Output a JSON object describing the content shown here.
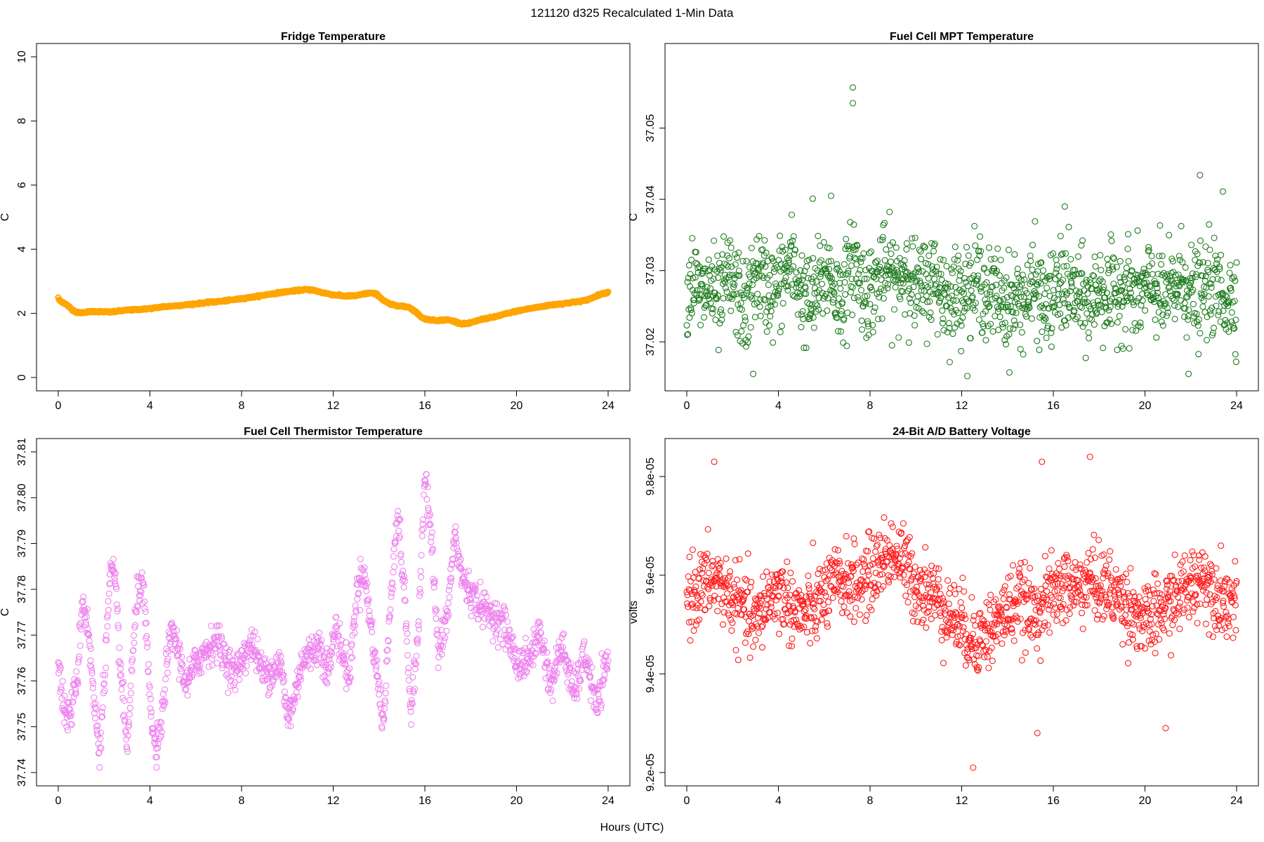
{
  "figure": {
    "title": "121120   d325   Recalculated 1-Min Data",
    "xlabel": "Hours (UTC)"
  },
  "chart_data": [
    {
      "type": "scatter",
      "title": "Fridge Temperature",
      "xlabel": "",
      "ylabel": "C",
      "xlim": [
        0,
        24
      ],
      "ylim": [
        0,
        10
      ],
      "xticks": [
        "0",
        "4",
        "8",
        "12",
        "16",
        "20",
        "24"
      ],
      "yticks": [
        "0",
        "2",
        "4",
        "6",
        "8",
        "10"
      ],
      "color": "#FFA500",
      "marker": "open-circle",
      "marker_note": "point density ~1 per minute",
      "series": [
        {
          "x": [
            0.0,
            0.05,
            0.2,
            0.4,
            0.6,
            0.8,
            1.0,
            1.3,
            1.6,
            2.0,
            2.3,
            2.6,
            3.0,
            3.5,
            4.0,
            4.5,
            5.0,
            5.5,
            6.0,
            6.5,
            7.0,
            7.5,
            8.0,
            8.5,
            9.0,
            9.5,
            10.0,
            10.5,
            10.8,
            11.1,
            11.5,
            12.0,
            12.5,
            13.0,
            13.3,
            13.6,
            13.9,
            14.2,
            14.5,
            15.0,
            15.3,
            15.6,
            15.9,
            16.2,
            16.5,
            17.0,
            17.3,
            17.6,
            17.9,
            18.2,
            18.5,
            19.0,
            19.5,
            20.0,
            20.5,
            21.0,
            21.5,
            22.0,
            22.5,
            23.0,
            23.3,
            23.6,
            24.0
          ],
          "y": [
            2.5,
            2.4,
            2.35,
            2.25,
            2.12,
            2.03,
            2.02,
            2.05,
            2.06,
            2.05,
            2.04,
            2.07,
            2.1,
            2.12,
            2.15,
            2.2,
            2.23,
            2.26,
            2.3,
            2.34,
            2.37,
            2.41,
            2.46,
            2.51,
            2.57,
            2.63,
            2.68,
            2.72,
            2.74,
            2.73,
            2.65,
            2.58,
            2.54,
            2.55,
            2.6,
            2.64,
            2.6,
            2.4,
            2.28,
            2.22,
            2.2,
            2.05,
            1.85,
            1.8,
            1.78,
            1.8,
            1.75,
            1.68,
            1.68,
            1.75,
            1.82,
            1.88,
            1.98,
            2.07,
            2.14,
            2.2,
            2.26,
            2.3,
            2.35,
            2.4,
            2.48,
            2.58,
            2.66
          ]
        }
      ]
    },
    {
      "type": "scatter",
      "title": "Fuel Cell MPT Temperature",
      "xlabel": "",
      "ylabel": "C",
      "xlim": [
        0,
        24
      ],
      "ylim": [
        37.015,
        37.06
      ],
      "xticks": [
        "0",
        "4",
        "8",
        "12",
        "16",
        "20",
        "24"
      ],
      "yticks": [
        "37.02",
        "37.03",
        "37.04",
        "37.05"
      ],
      "color": "#1E7B1E",
      "marker": "open-circle",
      "marker_note": "noise around 37.027, spread about ±0.005",
      "series": [
        {
          "x": [
            0.0,
            0.3,
            0.6,
            1.0,
            1.4,
            1.8,
            2.2,
            2.6,
            3.0,
            3.4,
            3.8,
            4.2,
            4.6,
            5.0,
            5.4,
            5.8,
            6.2,
            6.6,
            7.0,
            7.3,
            7.6,
            8.0,
            8.4,
            8.8,
            9.2,
            9.6,
            10.0,
            10.4,
            10.8,
            11.2,
            11.6,
            12.0,
            12.4,
            12.8,
            13.2,
            13.6,
            14.0,
            14.4,
            14.8,
            15.2,
            15.6,
            16.0,
            16.4,
            16.8,
            17.2,
            17.6,
            18.0,
            18.4,
            18.8,
            19.2,
            19.6,
            20.0,
            20.4,
            20.8,
            21.2,
            21.6,
            22.0,
            22.4,
            22.8,
            23.2,
            23.6,
            24.0
          ],
          "y": [
            37.027,
            37.029,
            37.026,
            37.028,
            37.025,
            37.029,
            37.027,
            37.024,
            37.03,
            37.028,
            37.027,
            37.029,
            37.031,
            37.027,
            37.025,
            37.028,
            37.03,
            37.026,
            37.028,
            37.032,
            37.028,
            37.027,
            37.029,
            37.03,
            37.028,
            37.031,
            37.027,
            37.028,
            37.029,
            37.027,
            37.026,
            37.028,
            37.027,
            37.029,
            37.026,
            37.027,
            37.025,
            37.026,
            37.026,
            37.028,
            37.025,
            37.026,
            37.028,
            37.027,
            37.026,
            37.025,
            37.028,
            37.026,
            37.027,
            37.028,
            37.026,
            37.027,
            37.028,
            37.026,
            37.027,
            37.029,
            37.027,
            37.026,
            37.028,
            37.027,
            37.026,
            37.027
          ],
          "outliers": [
            [
              7.25,
              37.0557
            ],
            [
              7.25,
              37.0535
            ],
            [
              22.4,
              37.0434
            ],
            [
              23.4,
              37.0411
            ],
            [
              6.3,
              37.0405
            ],
            [
              5.5,
              37.0401
            ],
            [
              16.5,
              37.039
            ],
            [
              2.9,
              37.0155
            ],
            [
              21.9,
              37.0155
            ]
          ]
        }
      ]
    },
    {
      "type": "scatter",
      "title": "Fuel Cell Thermistor Temperature",
      "xlabel": "",
      "ylabel": "C",
      "xlim": [
        0,
        24
      ],
      "ylim": [
        37.74,
        37.81
      ],
      "xticks": [
        "0",
        "4",
        "8",
        "12",
        "16",
        "20",
        "24"
      ],
      "yticks": [
        "37.74",
        "37.75",
        "37.76",
        "37.77",
        "37.78",
        "37.79",
        "37.80",
        "37.81"
      ],
      "color": "#EE82EE",
      "marker": "open-circle",
      "series": [
        {
          "x": [
            0.0,
            0.3,
            0.6,
            0.85,
            1.05,
            1.3,
            1.55,
            1.8,
            2.05,
            2.3,
            2.5,
            2.75,
            3.0,
            3.25,
            3.5,
            3.75,
            4.0,
            4.25,
            4.5,
            4.75,
            5.0,
            5.3,
            5.6,
            6.0,
            6.5,
            6.9,
            7.3,
            7.7,
            8.1,
            8.5,
            8.9,
            9.3,
            9.7,
            10.0,
            10.3,
            10.6,
            11.0,
            11.4,
            11.8,
            12.1,
            12.4,
            12.7,
            13.0,
            13.3,
            13.6,
            13.9,
            14.2,
            14.5,
            14.8,
            15.1,
            15.4,
            15.7,
            16.0,
            16.3,
            16.6,
            17.0,
            17.3,
            17.6,
            18.0,
            18.5,
            19.0,
            19.5,
            20.0,
            20.5,
            21.0,
            21.5,
            22.0,
            22.5,
            23.0,
            23.5,
            24.0
          ],
          "y": [
            37.764,
            37.752,
            37.754,
            37.762,
            37.778,
            37.772,
            37.756,
            37.744,
            37.765,
            37.785,
            37.78,
            37.76,
            37.745,
            37.765,
            37.782,
            37.778,
            37.755,
            37.744,
            37.75,
            37.765,
            37.771,
            37.765,
            37.759,
            37.764,
            37.767,
            37.769,
            37.765,
            37.761,
            37.766,
            37.768,
            37.762,
            37.762,
            37.764,
            37.752,
            37.756,
            37.764,
            37.766,
            37.768,
            37.762,
            37.772,
            37.766,
            37.76,
            37.778,
            37.785,
            37.774,
            37.762,
            37.75,
            37.778,
            37.797,
            37.78,
            37.752,
            37.77,
            37.806,
            37.79,
            37.765,
            37.775,
            37.792,
            37.783,
            37.779,
            37.776,
            37.774,
            37.772,
            37.764,
            37.764,
            37.771,
            37.759,
            37.768,
            37.757,
            37.766,
            37.754,
            37.765
          ]
        }
      ]
    },
    {
      "type": "scatter",
      "title": "24-Bit A/D Battery Voltage",
      "xlabel": "",
      "ylabel": "volts",
      "xlim": [
        0,
        24
      ],
      "ylim": [
        9.2e-05,
        9.85e-05
      ],
      "xticks": [
        "0",
        "4",
        "8",
        "12",
        "16",
        "20",
        "24"
      ],
      "yticks": [
        "9.2e-05",
        "9.4e-05",
        "9.6e-05",
        "9.8e-05"
      ],
      "color": "#FF1A1A",
      "marker": "open-circle",
      "series": [
        {
          "x": [
            0.0,
            0.5,
            1.0,
            1.5,
            2.0,
            2.5,
            3.0,
            3.5,
            4.0,
            4.5,
            5.0,
            5.5,
            6.0,
            6.5,
            7.0,
            7.5,
            8.0,
            8.5,
            9.0,
            9.5,
            10.0,
            10.5,
            11.0,
            11.5,
            12.0,
            12.5,
            13.0,
            13.5,
            14.0,
            14.5,
            15.0,
            15.5,
            16.0,
            16.5,
            17.0,
            17.5,
            18.0,
            18.5,
            19.0,
            19.5,
            20.0,
            20.5,
            21.0,
            21.5,
            22.0,
            22.5,
            23.0,
            23.5,
            24.0
          ],
          "y": [
            9.56e-05,
            9.57e-05,
            9.59e-05,
            9.58e-05,
            9.55e-05,
            9.53e-05,
            9.5e-05,
            9.55e-05,
            9.57e-05,
            9.54e-05,
            9.52e-05,
            9.53e-05,
            9.56e-05,
            9.58e-05,
            9.59e-05,
            9.58e-05,
            9.6e-05,
            9.63e-05,
            9.65e-05,
            9.62e-05,
            9.58e-05,
            9.57e-05,
            9.55e-05,
            9.52e-05,
            9.5e-05,
            9.47e-05,
            9.48e-05,
            9.5e-05,
            9.53e-05,
            9.55e-05,
            9.52e-05,
            9.54e-05,
            9.56e-05,
            9.58e-05,
            9.57e-05,
            9.59e-05,
            9.58e-05,
            9.57e-05,
            9.55e-05,
            9.53e-05,
            9.5e-05,
            9.52e-05,
            9.54e-05,
            9.56e-05,
            9.58e-05,
            9.6e-05,
            9.57e-05,
            9.55e-05,
            9.55e-05
          ],
          "outliers": [
            [
              17.6,
              9.84e-05
            ],
            [
              1.2,
              9.83e-05
            ],
            [
              15.5,
              9.83e-05
            ],
            [
              12.5,
              9.21e-05
            ],
            [
              20.9,
              9.29e-05
            ],
            [
              15.3,
              9.28e-05
            ]
          ]
        }
      ]
    }
  ]
}
